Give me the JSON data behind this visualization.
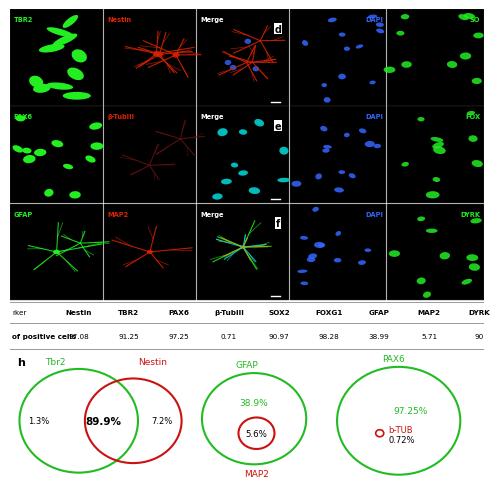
{
  "h_label": "h",
  "table_headers": [
    "Nestin",
    "TBR2",
    "PAX6",
    "β-TubIII",
    "SOX2",
    "FOXG1",
    "GFAP",
    "MAP2",
    "DYRK"
  ],
  "table_values": [
    "97.08",
    "91.25",
    "97.25",
    "0.71",
    "90.97",
    "98.28",
    "38.99",
    "5.71",
    "90"
  ],
  "venn1": {
    "label_left": "Tbr2",
    "label_right": "Nestin",
    "pct_left": "1.3%",
    "pct_center": "89.9%",
    "pct_right": "7.2%",
    "color_left": "#22bb22",
    "color_right": "#cc1111"
  },
  "venn2": {
    "label_outer": "GFAP",
    "label_inner": "MAP2",
    "pct_outer": "38.9%",
    "pct_inner": "5.6%",
    "color_outer": "#22bb22",
    "color_inner": "#cc1111"
  },
  "venn3": {
    "label_outer": "PAX6",
    "label_dot": "b-TUB",
    "pct_outer": "97.25%",
    "pct_dot": "0.72%",
    "color_outer": "#22bb22",
    "color_dot": "#cc1111"
  },
  "bg_color": "#ffffff",
  "micro_bg": "#000000",
  "green_cell": "#22ee22",
  "red_cell": "#dd2200",
  "blue_cell": "#3366ff",
  "cyan_cell": "#00dddd"
}
